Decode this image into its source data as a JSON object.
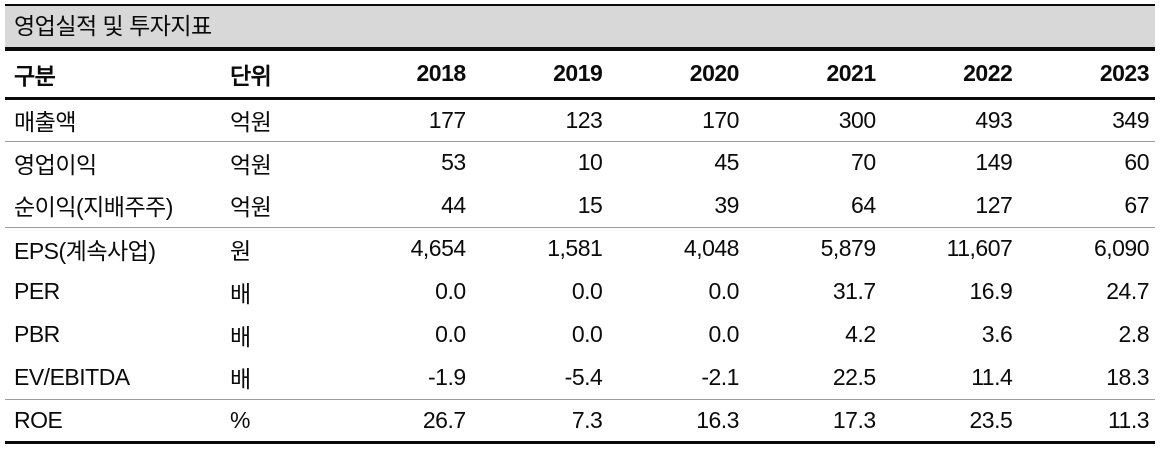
{
  "title": "영업실적 및 투자지표",
  "table": {
    "headers": [
      "구분",
      "단위",
      "2018",
      "2019",
      "2020",
      "2021",
      "2022",
      "2023"
    ],
    "rows": [
      {
        "cells": [
          "매출액",
          "억원",
          "177",
          "123",
          "170",
          "300",
          "493",
          "349"
        ]
      },
      {
        "cells": [
          "영업이익",
          "억원",
          "53",
          "10",
          "45",
          "70",
          "149",
          "60"
        ]
      },
      {
        "cells": [
          "순이익(지배주주)",
          "억원",
          "44",
          "15",
          "39",
          "64",
          "127",
          "67"
        ]
      },
      {
        "cells": [
          "EPS(계속사업)",
          "원",
          "4,654",
          "1,581",
          "4,048",
          "5,879",
          "11,607",
          "6,090"
        ]
      },
      {
        "cells": [
          "PER",
          "배",
          "0.0",
          "0.0",
          "0.0",
          "31.7",
          "16.9",
          "24.7"
        ]
      },
      {
        "cells": [
          "PBR",
          "배",
          "0.0",
          "0.0",
          "0.0",
          "4.2",
          "3.6",
          "2.8"
        ]
      },
      {
        "cells": [
          "EV/EBITDA",
          "배",
          "-1.9",
          "-5.4",
          "-2.1",
          "22.5",
          "11.4",
          "18.3"
        ]
      },
      {
        "cells": [
          "ROE",
          "%",
          "26.7",
          "7.3",
          "16.3",
          "17.3",
          "23.5",
          "11.3"
        ]
      }
    ]
  },
  "colors": {
    "title_background": "#d8d8d8",
    "rule_strong": "#0a0a0a",
    "rule_light": "#9c9c9c",
    "text": "#0b0b0b"
  }
}
